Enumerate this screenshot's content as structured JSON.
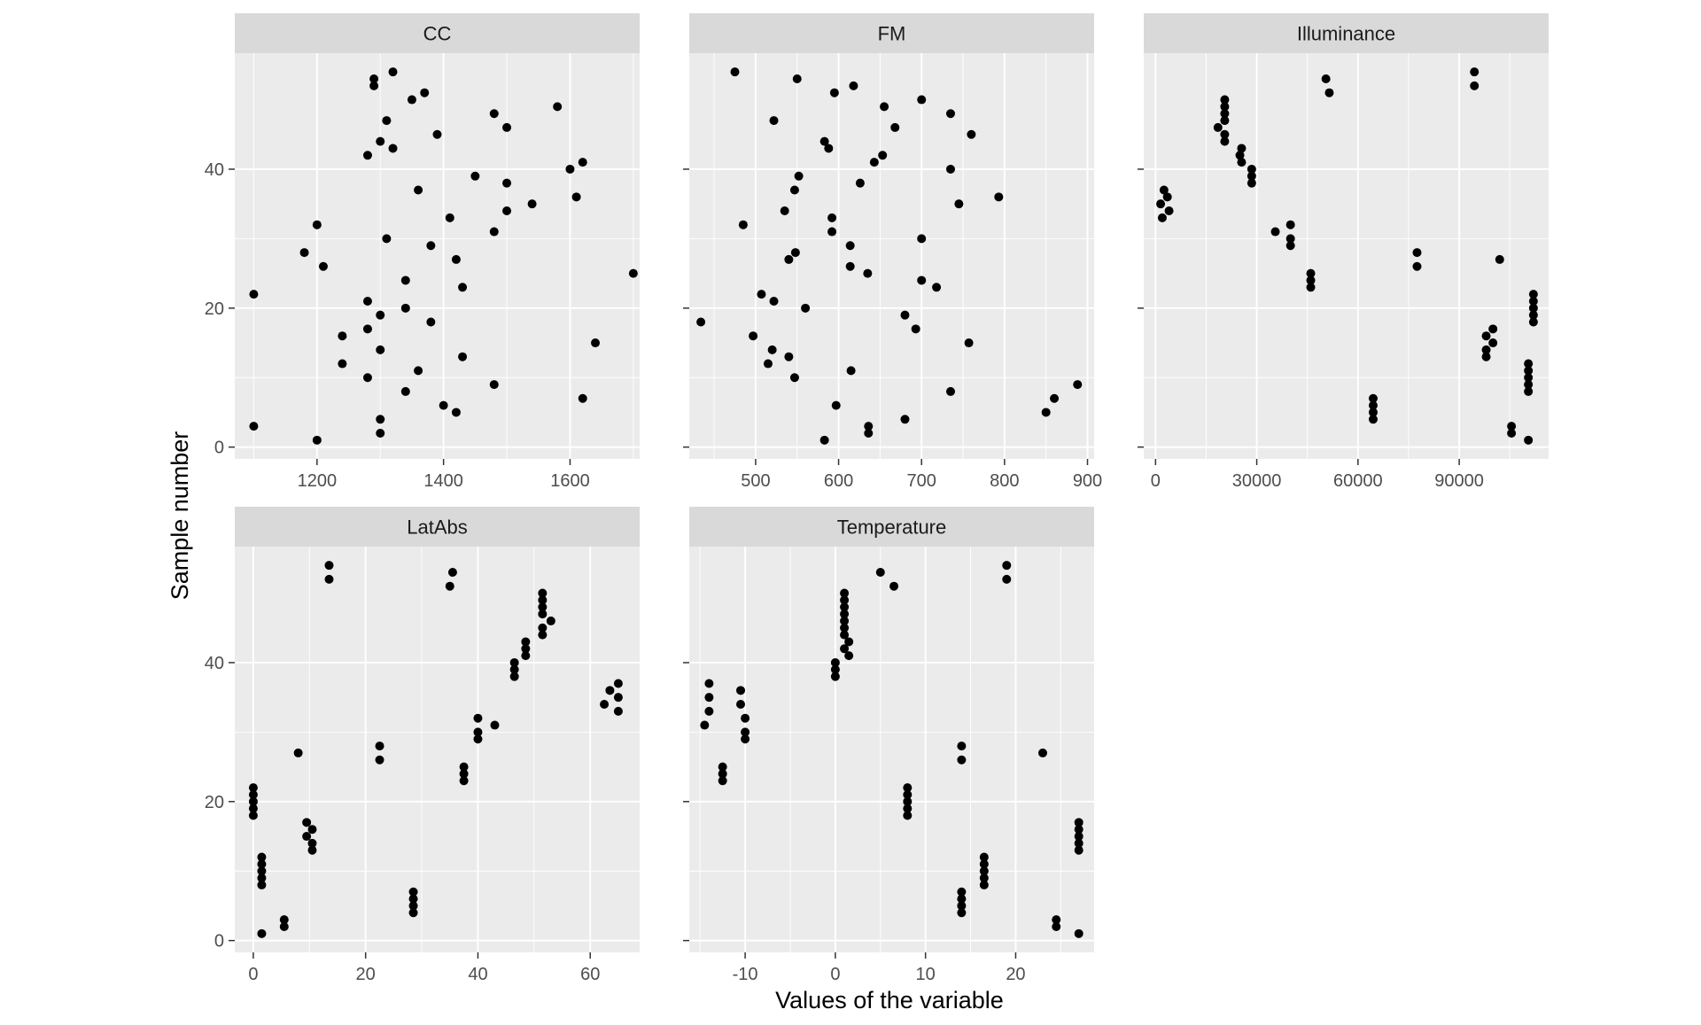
{
  "chart_data": {
    "type": "scatter",
    "xlabel": "Values of the variable",
    "ylabel": "Sample number",
    "grid": true,
    "y_ticks": [
      0,
      20,
      40
    ],
    "panels": [
      {
        "name": "CC",
        "xlim": [
          1070,
          1710
        ],
        "ylim": [
          -1.7,
          56.7
        ],
        "x_ticks": [
          {
            "value": 1200,
            "label": "1200"
          },
          {
            "value": 1400,
            "label": "1400"
          },
          {
            "value": 1600,
            "label": "1600"
          }
        ],
        "points": [
          [
            1290,
            53
          ],
          [
            1320,
            54
          ],
          [
            1290,
            52
          ],
          [
            1370,
            51
          ],
          [
            1350,
            50
          ],
          [
            1580,
            49
          ],
          [
            1480,
            48
          ],
          [
            1310,
            47
          ],
          [
            1500,
            46
          ],
          [
            1390,
            45
          ],
          [
            1300,
            44
          ],
          [
            1320,
            43
          ],
          [
            1280,
            42
          ],
          [
            1620,
            41
          ],
          [
            1600,
            40
          ],
          [
            1450,
            39
          ],
          [
            1500,
            38
          ],
          [
            1360,
            37
          ],
          [
            1610,
            36
          ],
          [
            1540,
            35
          ],
          [
            1500,
            34
          ],
          [
            1410,
            33
          ],
          [
            1200,
            32
          ],
          [
            1480,
            31
          ],
          [
            1310,
            30
          ],
          [
            1380,
            29
          ],
          [
            1180,
            28
          ],
          [
            1420,
            27
          ],
          [
            1210,
            26
          ],
          [
            1700,
            25
          ],
          [
            1340,
            24
          ],
          [
            1430,
            23
          ],
          [
            1100,
            22
          ],
          [
            1280,
            21
          ],
          [
            1340,
            20
          ],
          [
            1300,
            19
          ],
          [
            1380,
            18
          ],
          [
            1280,
            17
          ],
          [
            1240,
            16
          ],
          [
            1640,
            15
          ],
          [
            1300,
            14
          ],
          [
            1430,
            13
          ],
          [
            1240,
            12
          ],
          [
            1360,
            11
          ],
          [
            1280,
            10
          ],
          [
            1480,
            9
          ],
          [
            1340,
            8
          ],
          [
            1620,
            7
          ],
          [
            1400,
            6
          ],
          [
            1420,
            5
          ],
          [
            1300,
            4
          ],
          [
            1100,
            3
          ],
          [
            1300,
            2
          ],
          [
            1200,
            1
          ]
        ]
      },
      {
        "name": "FM",
        "xlim": [
          420,
          908
        ],
        "ylim": [
          -1.7,
          56.7
        ],
        "x_ticks": [
          {
            "value": 500,
            "label": "500"
          },
          {
            "value": 600,
            "label": "600"
          },
          {
            "value": 700,
            "label": "700"
          },
          {
            "value": 800,
            "label": "800"
          },
          {
            "value": 900,
            "label": "900"
          }
        ],
        "points": [
          [
            475,
            54
          ],
          [
            550,
            53
          ],
          [
            618,
            52
          ],
          [
            595,
            51
          ],
          [
            700,
            50
          ],
          [
            655,
            49
          ],
          [
            735,
            48
          ],
          [
            522,
            47
          ],
          [
            668,
            46
          ],
          [
            760,
            45
          ],
          [
            583,
            44
          ],
          [
            588,
            43
          ],
          [
            653,
            42
          ],
          [
            643,
            41
          ],
          [
            735,
            40
          ],
          [
            552,
            39
          ],
          [
            626,
            38
          ],
          [
            547,
            37
          ],
          [
            793,
            36
          ],
          [
            745,
            35
          ],
          [
            535,
            34
          ],
          [
            592,
            33
          ],
          [
            485,
            32
          ],
          [
            592,
            31
          ],
          [
            700,
            30
          ],
          [
            614,
            29
          ],
          [
            548,
            28
          ],
          [
            540,
            27
          ],
          [
            614,
            26
          ],
          [
            635,
            25
          ],
          [
            700,
            24
          ],
          [
            718,
            23
          ],
          [
            507,
            22
          ],
          [
            522,
            21
          ],
          [
            560,
            20
          ],
          [
            680,
            19
          ],
          [
            434,
            18
          ],
          [
            693,
            17
          ],
          [
            497,
            16
          ],
          [
            757,
            15
          ],
          [
            520,
            14
          ],
          [
            540,
            13
          ],
          [
            515,
            12
          ],
          [
            615,
            11
          ],
          [
            547,
            10
          ],
          [
            888,
            9
          ],
          [
            735,
            8
          ],
          [
            860,
            7
          ],
          [
            597,
            6
          ],
          [
            850,
            5
          ],
          [
            680,
            4
          ],
          [
            636,
            3
          ],
          [
            636,
            2
          ],
          [
            583,
            1
          ]
        ]
      },
      {
        "name": "Illuminance",
        "xlim": [
          -3500,
          116500
        ],
        "ylim": [
          -1.7,
          56.7
        ],
        "x_ticks": [
          {
            "value": 0,
            "label": "0"
          },
          {
            "value": 30000,
            "label": "30000"
          },
          {
            "value": 60000,
            "label": "60000"
          },
          {
            "value": 90000,
            "label": "90000"
          }
        ],
        "points": [
          [
            94500,
            54
          ],
          [
            50500,
            53
          ],
          [
            94500,
            52
          ],
          [
            51500,
            51
          ],
          [
            20500,
            50
          ],
          [
            20500,
            49
          ],
          [
            20500,
            48
          ],
          [
            20500,
            47
          ],
          [
            18500,
            46
          ],
          [
            20500,
            45
          ],
          [
            20500,
            44
          ],
          [
            25500,
            43
          ],
          [
            25000,
            42
          ],
          [
            25500,
            41
          ],
          [
            28500,
            40
          ],
          [
            28500,
            39
          ],
          [
            28500,
            38
          ],
          [
            2500,
            37
          ],
          [
            3500,
            36
          ],
          [
            1500,
            35
          ],
          [
            4000,
            34
          ],
          [
            2000,
            33
          ],
          [
            40000,
            32
          ],
          [
            35500,
            31
          ],
          [
            40000,
            30
          ],
          [
            40000,
            29
          ],
          [
            77500,
            28
          ],
          [
            102000,
            27
          ],
          [
            77500,
            26
          ],
          [
            46000,
            25
          ],
          [
            46000,
            24
          ],
          [
            46000,
            23
          ],
          [
            112000,
            22
          ],
          [
            112000,
            21
          ],
          [
            112000,
            20
          ],
          [
            112000,
            19
          ],
          [
            112000,
            18
          ],
          [
            100000,
            17
          ],
          [
            98000,
            16
          ],
          [
            100000,
            15
          ],
          [
            98000,
            14
          ],
          [
            98000,
            13
          ],
          [
            110500,
            12
          ],
          [
            110500,
            11
          ],
          [
            110500,
            10
          ],
          [
            110500,
            9
          ],
          [
            110500,
            8
          ],
          [
            64500,
            7
          ],
          [
            64500,
            6
          ],
          [
            64500,
            5
          ],
          [
            64500,
            4
          ],
          [
            105500,
            3
          ],
          [
            105500,
            2
          ],
          [
            110500,
            1
          ]
        ]
      },
      {
        "name": "LatAbs",
        "xlim": [
          -3.3,
          68.8
        ],
        "ylim": [
          -1.7,
          56.7
        ],
        "x_ticks": [
          {
            "value": 0,
            "label": "0"
          },
          {
            "value": 20,
            "label": "20"
          },
          {
            "value": 40,
            "label": "40"
          },
          {
            "value": 60,
            "label": "60"
          }
        ],
        "points": [
          [
            13.5,
            54
          ],
          [
            35.5,
            53
          ],
          [
            13.5,
            52
          ],
          [
            35,
            51
          ],
          [
            51.5,
            50
          ],
          [
            51.5,
            49
          ],
          [
            51.5,
            48
          ],
          [
            51.5,
            47
          ],
          [
            53,
            46
          ],
          [
            51.5,
            45
          ],
          [
            51.5,
            44
          ],
          [
            48.5,
            43
          ],
          [
            48.5,
            42
          ],
          [
            48.5,
            41
          ],
          [
            46.5,
            40
          ],
          [
            46.5,
            39
          ],
          [
            46.5,
            38
          ],
          [
            65,
            37
          ],
          [
            63.5,
            36
          ],
          [
            65,
            35
          ],
          [
            62.5,
            34
          ],
          [
            65,
            33
          ],
          [
            40,
            32
          ],
          [
            43,
            31
          ],
          [
            40,
            30
          ],
          [
            40,
            29
          ],
          [
            22.5,
            28
          ],
          [
            8,
            27
          ],
          [
            22.5,
            26
          ],
          [
            37.5,
            25
          ],
          [
            37.5,
            24
          ],
          [
            37.5,
            23
          ],
          [
            0,
            22
          ],
          [
            0,
            21
          ],
          [
            0,
            20
          ],
          [
            0,
            19
          ],
          [
            0,
            18
          ],
          [
            9.5,
            17
          ],
          [
            10.5,
            16
          ],
          [
            9.5,
            15
          ],
          [
            10.5,
            14
          ],
          [
            10.5,
            13
          ],
          [
            1.5,
            12
          ],
          [
            1.5,
            11
          ],
          [
            1.5,
            10
          ],
          [
            1.5,
            9
          ],
          [
            1.5,
            8
          ],
          [
            28.5,
            7
          ],
          [
            28.5,
            6
          ],
          [
            28.5,
            5
          ],
          [
            28.5,
            4
          ],
          [
            5.5,
            3
          ],
          [
            5.5,
            2
          ],
          [
            1.5,
            1
          ]
        ]
      },
      {
        "name": "Temperature",
        "xlim": [
          -16.2,
          28.7
        ],
        "ylim": [
          -1.7,
          56.7
        ],
        "x_ticks": [
          {
            "value": -10,
            "label": "-10"
          },
          {
            "value": 0,
            "label": "0"
          },
          {
            "value": 10,
            "label": "10"
          },
          {
            "value": 20,
            "label": "20"
          }
        ],
        "points": [
          [
            19,
            54
          ],
          [
            5,
            53
          ],
          [
            19,
            52
          ],
          [
            6.5,
            51
          ],
          [
            1,
            50
          ],
          [
            1,
            49
          ],
          [
            1,
            48
          ],
          [
            1,
            47
          ],
          [
            1,
            46
          ],
          [
            1,
            45
          ],
          [
            1,
            44
          ],
          [
            1.5,
            43
          ],
          [
            1,
            42
          ],
          [
            1.5,
            41
          ],
          [
            0,
            40
          ],
          [
            0,
            39
          ],
          [
            0,
            38
          ],
          [
            -14,
            37
          ],
          [
            -10.5,
            36
          ],
          [
            -14,
            35
          ],
          [
            -10.5,
            34
          ],
          [
            -14,
            33
          ],
          [
            -10,
            32
          ],
          [
            -14.5,
            31
          ],
          [
            -10,
            30
          ],
          [
            -10,
            29
          ],
          [
            14,
            28
          ],
          [
            23,
            27
          ],
          [
            14,
            26
          ],
          [
            -12.5,
            25
          ],
          [
            -12.5,
            24
          ],
          [
            -12.5,
            23
          ],
          [
            8,
            22
          ],
          [
            8,
            21
          ],
          [
            8,
            20
          ],
          [
            8,
            19
          ],
          [
            8,
            18
          ],
          [
            27,
            17
          ],
          [
            27,
            16
          ],
          [
            27,
            15
          ],
          [
            27,
            14
          ],
          [
            27,
            13
          ],
          [
            16.5,
            12
          ],
          [
            16.5,
            11
          ],
          [
            16.5,
            10
          ],
          [
            16.5,
            9
          ],
          [
            16.5,
            8
          ],
          [
            14,
            7
          ],
          [
            14,
            6
          ],
          [
            14,
            5
          ],
          [
            14,
            4
          ],
          [
            24.5,
            3
          ],
          [
            24.5,
            2
          ],
          [
            27,
            1
          ]
        ]
      }
    ]
  }
}
